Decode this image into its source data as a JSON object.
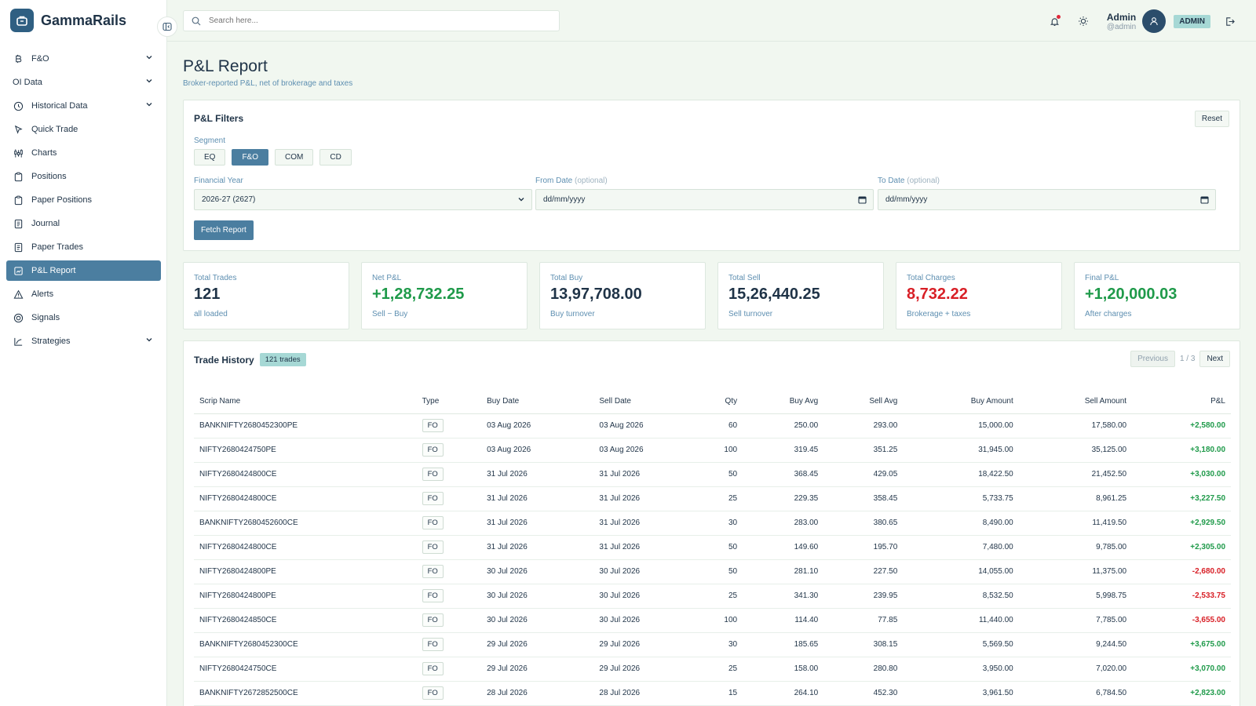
{
  "brand": {
    "name": "GammaRails"
  },
  "sidebar": {
    "items": [
      {
        "label": "F&O",
        "icon": "bitcoin-icon",
        "expandable": true
      },
      {
        "label": "OI Data",
        "icon": "",
        "expandable": true
      },
      {
        "label": "Historical Data",
        "icon": "clock-icon",
        "expandable": true
      },
      {
        "label": "Quick Trade",
        "icon": "pointer-icon",
        "expandable": false
      },
      {
        "label": "Charts",
        "icon": "candlestick-icon",
        "expandable": false
      },
      {
        "label": "Positions",
        "icon": "clipboard-icon",
        "expandable": false
      },
      {
        "label": "Paper Positions",
        "icon": "clipboard-icon",
        "expandable": false
      },
      {
        "label": "Journal",
        "icon": "notebook-icon",
        "expandable": false
      },
      {
        "label": "Paper Trades",
        "icon": "notebook-icon",
        "expandable": false
      },
      {
        "label": "P&L Report",
        "icon": "report-icon",
        "expandable": false,
        "active": true
      },
      {
        "label": "Alerts",
        "icon": "alert-icon",
        "expandable": false
      },
      {
        "label": "Signals",
        "icon": "signal-icon",
        "expandable": false
      },
      {
        "label": "Strategies",
        "icon": "strategy-icon",
        "expandable": true
      }
    ]
  },
  "topbar": {
    "search_placeholder": "Search here...",
    "user_name": "Admin",
    "user_handle": "@admin",
    "role": "ADMIN"
  },
  "page": {
    "title": "P&L Report",
    "subtitle": "Broker-reported P&L, net of brokerage and taxes"
  },
  "filters": {
    "title": "P&L Filters",
    "reset_label": "Reset",
    "segment_label": "Segment",
    "segments": [
      "EQ",
      "F&O",
      "COM",
      "CD"
    ],
    "active_segment": "F&O",
    "fy_label": "Financial Year",
    "fy_value": "2026-27 (2627)",
    "from_label": "From Date",
    "to_label": "To Date",
    "optional": "(optional)",
    "date_placeholder": "dd/mm/yyyy",
    "fetch_label": "Fetch Report"
  },
  "stats": [
    {
      "label": "Total Trades",
      "value": "121",
      "sub": "all loaded",
      "tone": ""
    },
    {
      "label": "Net P&L",
      "value": "+1,28,732.25",
      "sub": "Sell − Buy",
      "tone": "pos"
    },
    {
      "label": "Total Buy",
      "value": "13,97,708.00",
      "sub": "Buy turnover",
      "tone": ""
    },
    {
      "label": "Total Sell",
      "value": "15,26,440.25",
      "sub": "Sell turnover",
      "tone": ""
    },
    {
      "label": "Total Charges",
      "value": "8,732.22",
      "sub": "Brokerage + taxes",
      "tone": "neg"
    },
    {
      "label": "Final P&L",
      "value": "+1,20,000.03",
      "sub": "After charges",
      "tone": "pos"
    }
  ],
  "history": {
    "title": "Trade History",
    "count_badge": "121 trades",
    "prev_label": "Previous",
    "page_info": "1 / 3",
    "next_label": "Next",
    "columns": [
      "Scrip Name",
      "Type",
      "Buy Date",
      "Sell Date",
      "Qty",
      "Buy Avg",
      "Sell Avg",
      "Buy Amount",
      "Sell Amount",
      "P&L"
    ],
    "rows": [
      [
        "BANKNIFTY2680452300PE",
        "FO",
        "03 Aug 2026",
        "03 Aug 2026",
        "60",
        "250.00",
        "293.00",
        "15,000.00",
        "17,580.00",
        "+2,580.00"
      ],
      [
        "NIFTY2680424750PE",
        "FO",
        "03 Aug 2026",
        "03 Aug 2026",
        "100",
        "319.45",
        "351.25",
        "31,945.00",
        "35,125.00",
        "+3,180.00"
      ],
      [
        "NIFTY2680424800CE",
        "FO",
        "31 Jul 2026",
        "31 Jul 2026",
        "50",
        "368.45",
        "429.05",
        "18,422.50",
        "21,452.50",
        "+3,030.00"
      ],
      [
        "NIFTY2680424800CE",
        "FO",
        "31 Jul 2026",
        "31 Jul 2026",
        "25",
        "229.35",
        "358.45",
        "5,733.75",
        "8,961.25",
        "+3,227.50"
      ],
      [
        "BANKNIFTY2680452600CE",
        "FO",
        "31 Jul 2026",
        "31 Jul 2026",
        "30",
        "283.00",
        "380.65",
        "8,490.00",
        "11,419.50",
        "+2,929.50"
      ],
      [
        "NIFTY2680424800CE",
        "FO",
        "31 Jul 2026",
        "31 Jul 2026",
        "50",
        "149.60",
        "195.70",
        "7,480.00",
        "9,785.00",
        "+2,305.00"
      ],
      [
        "NIFTY2680424800PE",
        "FO",
        "30 Jul 2026",
        "30 Jul 2026",
        "50",
        "281.10",
        "227.50",
        "14,055.00",
        "11,375.00",
        "-2,680.00"
      ],
      [
        "NIFTY2680424800PE",
        "FO",
        "30 Jul 2026",
        "30 Jul 2026",
        "25",
        "341.30",
        "239.95",
        "8,532.50",
        "5,998.75",
        "-2,533.75"
      ],
      [
        "NIFTY2680424850CE",
        "FO",
        "30 Jul 2026",
        "30 Jul 2026",
        "100",
        "114.40",
        "77.85",
        "11,440.00",
        "7,785.00",
        "-3,655.00"
      ],
      [
        "BANKNIFTY2680452300CE",
        "FO",
        "29 Jul 2026",
        "29 Jul 2026",
        "30",
        "185.65",
        "308.15",
        "5,569.50",
        "9,244.50",
        "+3,675.00"
      ],
      [
        "NIFTY2680424750CE",
        "FO",
        "29 Jul 2026",
        "29 Jul 2026",
        "25",
        "158.00",
        "280.80",
        "3,950.00",
        "7,020.00",
        "+3,070.00"
      ],
      [
        "BANKNIFTY2672852500CE",
        "FO",
        "28 Jul 2026",
        "28 Jul 2026",
        "15",
        "264.10",
        "452.30",
        "3,961.50",
        "6,784.50",
        "+2,823.00"
      ]
    ]
  },
  "colors": {
    "accent": "#4b7ea0",
    "positive": "#1f9a4a",
    "negative": "#d81f26",
    "badge": "#a6d8d5"
  }
}
